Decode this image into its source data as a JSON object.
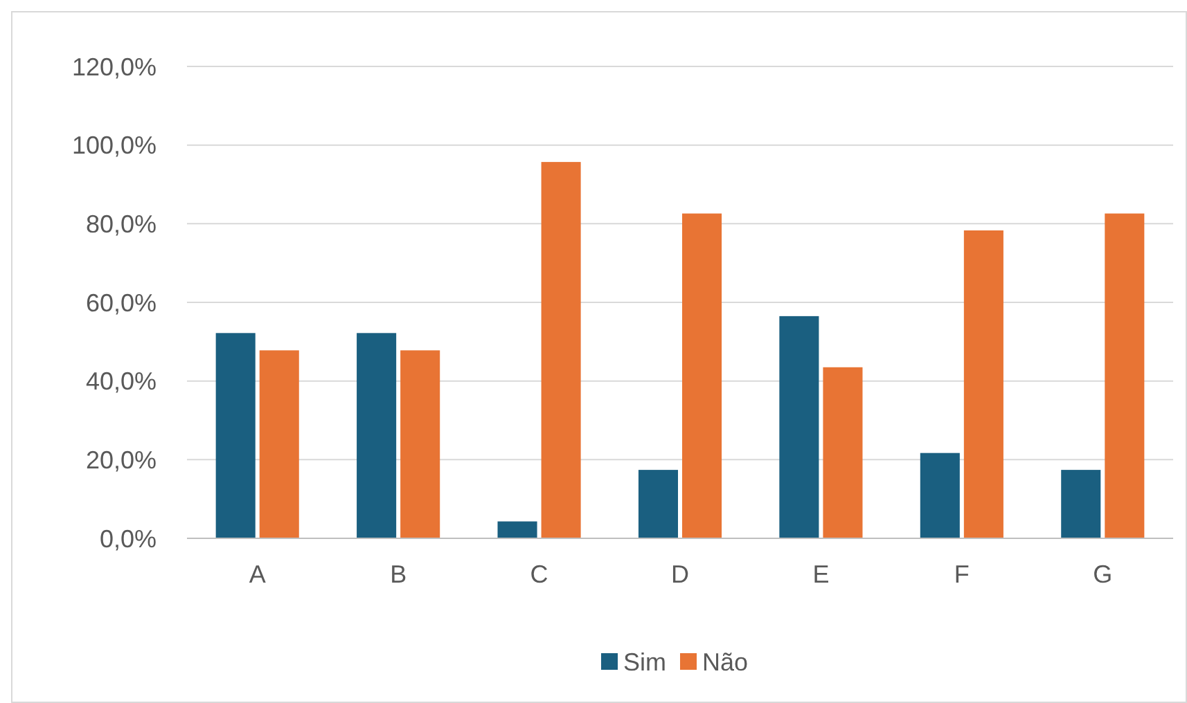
{
  "chart_data": {
    "type": "bar",
    "categories": [
      "A",
      "B",
      "C",
      "D",
      "E",
      "F",
      "G"
    ],
    "series": [
      {
        "name": "Sim",
        "color": "#1a5f80",
        "values": [
          52.2,
          52.2,
          4.3,
          17.4,
          56.5,
          21.7,
          17.4
        ]
      },
      {
        "name": "Não",
        "color": "#e87434",
        "values": [
          47.8,
          47.8,
          95.7,
          82.6,
          43.5,
          78.3,
          82.6
        ]
      }
    ],
    "ylim": [
      0,
      120
    ],
    "yticks": [
      {
        "value": 0,
        "label": "0,0%"
      },
      {
        "value": 20,
        "label": "20,0%"
      },
      {
        "value": 40,
        "label": "40,0%"
      },
      {
        "value": 60,
        "label": "60,0%"
      },
      {
        "value": 80,
        "label": "80,0%"
      },
      {
        "value": 100,
        "label": "100,0%"
      },
      {
        "value": 120,
        "label": "120,0%"
      }
    ],
    "grid": "y",
    "legend": "bottom"
  }
}
